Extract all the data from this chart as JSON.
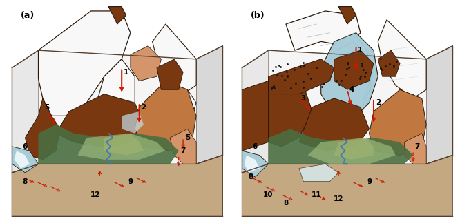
{
  "fig_width": 6.66,
  "fig_height": 3.24,
  "dpi": 100,
  "bg_color": "#ffffff",
  "panel_a_label": "(a)",
  "panel_b_label": "(b)",
  "label_fontsize": 9,
  "number_fontsize": 7.5,
  "colors": {
    "white_snow": "#f8f8f8",
    "glacier_blue": "#a8cdd8",
    "glacier_blue_light": "#c5dfe8",
    "mountain_dark_brown": "#7a3810",
    "mountain_med_brown": "#9a5020",
    "orange_brown": "#c07840",
    "light_orange": "#d4956a",
    "tan_soil": "#c4a882",
    "valley_dark_green": "#4a6e40",
    "valley_mid_green": "#6a8e55",
    "valley_light_green": "#9ab87a",
    "valley_yellow_green": "#a8b870",
    "river_blue": "#4878b0",
    "red_arrow": "#cc1800",
    "outline_dark": "#2a1808",
    "outline_med": "#554030",
    "box_line": "#888888",
    "left_wall": "#e8e8e8",
    "right_wall": "#d8d8d8",
    "top_wall": "#f0f0f0",
    "ice_white": "#ddeef5",
    "permafrost": "#b8d0dc"
  }
}
